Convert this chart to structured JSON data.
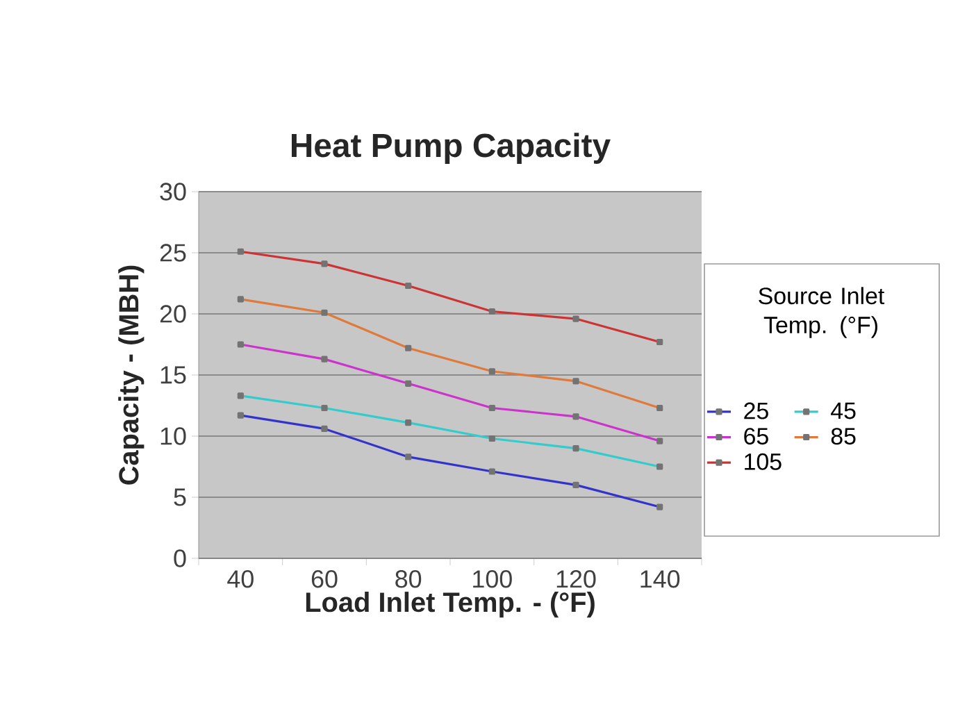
{
  "chart_data": {
    "type": "line",
    "title": "Heat Pump Capacity",
    "xlabel": "Load Inlet Temp. - (°F)",
    "ylabel": "Capacity - (MBH)",
    "legend_title": "Source Inlet Temp. (°F)",
    "categories": [
      "40",
      "60",
      "80",
      "100",
      "120",
      "140"
    ],
    "series": [
      {
        "name": "25",
        "color": "#3333cc",
        "values": [
          11.7,
          10.6,
          8.3,
          7.1,
          6.0,
          4.2
        ]
      },
      {
        "name": "45",
        "color": "#33cccc",
        "values": [
          13.3,
          12.3,
          11.1,
          9.8,
          9.0,
          7.5
        ]
      },
      {
        "name": "65",
        "color": "#cc33cc",
        "values": [
          17.5,
          16.3,
          14.3,
          12.3,
          11.6,
          9.6
        ]
      },
      {
        "name": "85",
        "color": "#e07a3a",
        "values": [
          21.2,
          20.1,
          17.2,
          15.3,
          14.5,
          12.3
        ]
      },
      {
        "name": "105",
        "color": "#cc3333",
        "values": [
          25.1,
          24.1,
          22.3,
          20.2,
          19.6,
          17.7
        ]
      }
    ],
    "ylim": [
      0,
      30
    ],
    "yticks": [
      0,
      5,
      10,
      15,
      20,
      25,
      30
    ],
    "grid": "y",
    "legend": "right",
    "marker": "square",
    "line_style": "solid"
  }
}
